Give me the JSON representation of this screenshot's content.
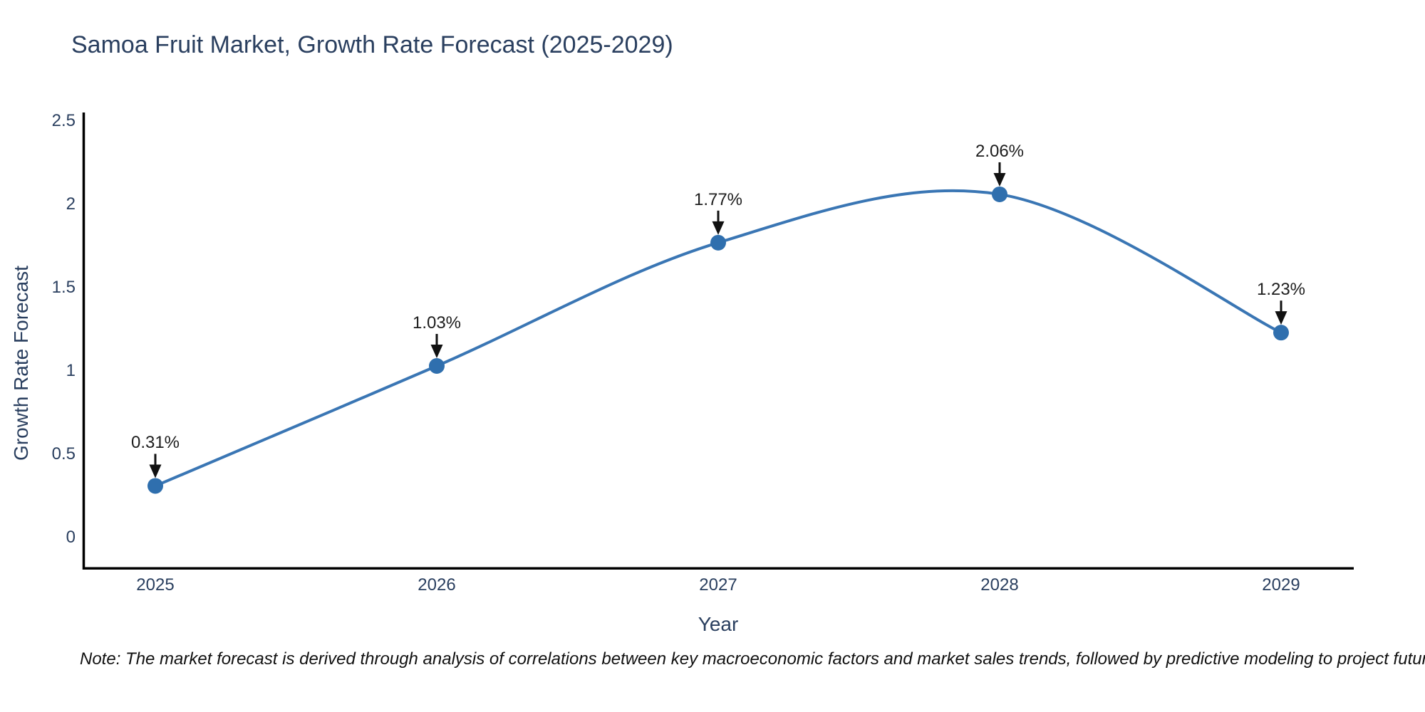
{
  "title": "Samoa Fruit Market, Growth Rate Forecast (2025-2029)",
  "note": "Note: The market forecast is derived through analysis of correlations between key macroeconomic factors and market sales trends, followed by predictive modeling to project future sales",
  "chart_data": {
    "type": "line",
    "line_shape": "spline",
    "title": "Samoa Fruit Market, Growth Rate Forecast (2025-2029)",
    "xlabel": "Year",
    "ylabel": "Growth Rate Forecast",
    "x": [
      2025,
      2026,
      2027,
      2028,
      2029
    ],
    "y": [
      0.31,
      1.03,
      1.77,
      2.06,
      1.23
    ],
    "point_labels": [
      "0.31%",
      "1.03%",
      "1.77%",
      "2.06%",
      "1.23%"
    ],
    "xtick_labels": [
      "2025",
      "2026",
      "2027",
      "2028",
      "2029"
    ],
    "ytick_values": [
      0,
      0.5,
      1,
      1.5,
      2,
      2.5
    ],
    "ytick_labels": [
      "0",
      "0.5",
      "1",
      "1.5",
      "2",
      "2.5"
    ],
    "ylim": [
      -0.19,
      2.55
    ],
    "grid": false,
    "legend_position": "none",
    "colors": {
      "line": "#3a76b4",
      "marker": "#2f6fae",
      "axis": "#000000",
      "axis_text": "#2a3f5f",
      "annotation_text": "#1d1d1d",
      "arrow": "#111111",
      "background": "#ffffff"
    }
  }
}
